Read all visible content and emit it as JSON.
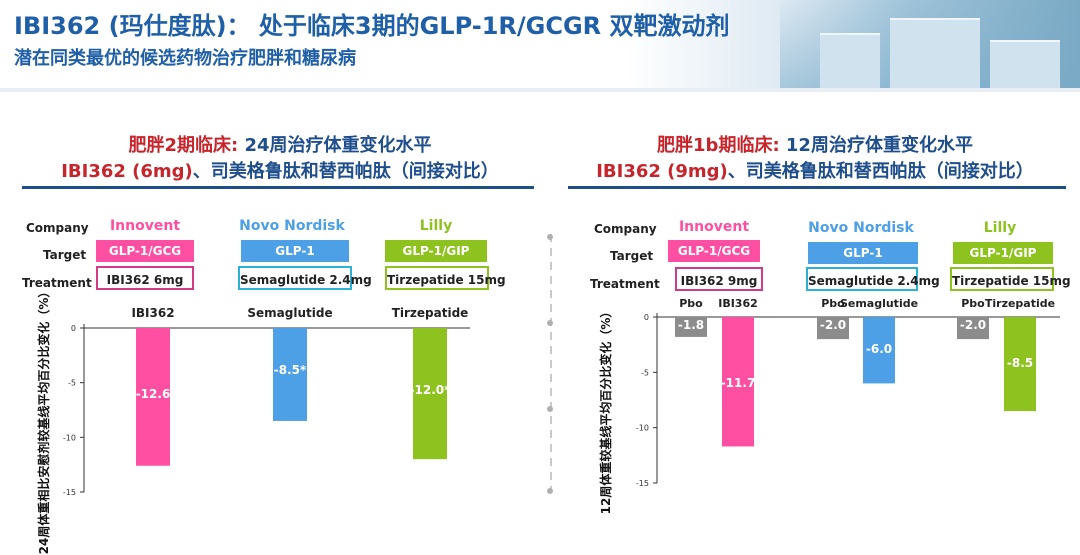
{
  "header": {
    "title": "IBI362 (玛仕度肽)： 处于临床3期的GLP-1R/GCGR 双靶激动剂",
    "subtitle": "潜在同类最优的候选药物治疗肥胖和糖尿病"
  },
  "left_panel": {
    "title_red": "肥胖2期临床:",
    "title_blue": " 24周治疗体重变化水平",
    "title_line2_red": "IBI362 (6mg)",
    "title_line2_blue": "、司美格鲁肽和替西帕肽（间接对比）",
    "row_labels": {
      "company": "Company",
      "target": "Target",
      "treatment": "Treatment"
    },
    "columns": [
      {
        "company": "Innovent",
        "company_color": "#ff4fa3",
        "target": "GLP-1/GCG",
        "target_color": "#ff4fa3",
        "treatment": "IBI362 6mg",
        "border_color": "#d23a87"
      },
      {
        "company": "Novo Nordisk",
        "company_color": "#4d9fe6",
        "target": "GLP-1",
        "target_color": "#4d9fe6",
        "treatment": "Semaglutide 2.4mg",
        "border_color": "#2bb0d6"
      },
      {
        "company": "Lilly",
        "company_color": "#8dc21f",
        "target": "GLP-1/GIP",
        "target_color": "#8dc21f",
        "treatment": "Tirzepatide 15mg",
        "border_color": "#8dc21f"
      }
    ],
    "y_axis_label": "24周体重相比安慰剂较基线平均百分比变化（%）"
  },
  "right_panel": {
    "title_red": "肥胖1b期临床:",
    "title_blue": " 12周治疗体重变化水平",
    "title_line2_red": "IBI362 (9mg)",
    "title_line2_blue": "、司美格鲁肽和替西帕肽（间接对比）",
    "row_labels": {
      "company": "Company",
      "target": "Target",
      "treatment": "Treatment"
    },
    "columns": [
      {
        "company": "Innovent",
        "company_color": "#ff4fa3",
        "target": "GLP-1/GCG",
        "target_color": "#ff4fa3",
        "treatment": "IBI362 9mg",
        "border_color": "#d23a87"
      },
      {
        "company": "Novo Nordisk",
        "company_color": "#4d9fe6",
        "target": "GLP-1",
        "target_color": "#4d9fe6",
        "treatment": "Semaglutide 2.4mg",
        "border_color": "#2bb0d6"
      },
      {
        "company": "Lilly",
        "company_color": "#8dc21f",
        "target": "GLP-1/GIP",
        "target_color": "#8dc21f",
        "treatment": "Tirzepatide 15mg",
        "border_color": "#8dc21f"
      }
    ],
    "y_axis_label": "12周体重较基线平均百分比变化（%）"
  },
  "chart_data": [
    {
      "type": "bar",
      "categories": [
        "IBI362",
        "Semaglutide",
        "Tirzepatide"
      ],
      "values": [
        -12.6,
        -8.5,
        -12.0
      ],
      "data_labels": [
        "-12.6",
        "-8.5*",
        "-12.0*"
      ],
      "colors": [
        "#ff4fa3",
        "#4d9fe6",
        "#8dc21f"
      ],
      "ylabel": "24周体重相比安慰剂较基线平均百分比变化（%）",
      "ylim": [
        -15,
        0
      ],
      "yticks": [
        0,
        -5,
        -10,
        -15
      ]
    },
    {
      "type": "bar",
      "categories": [
        "Pbo",
        "IBI362",
        "Pbo",
        "Semaglutide",
        "Pbo",
        "Tirzepatide"
      ],
      "values": [
        -1.8,
        -11.7,
        -2.0,
        -6.0,
        -2.0,
        -8.5
      ],
      "data_labels": [
        "-1.8",
        "-11.7",
        "-2.0",
        "-6.0",
        "-2.0",
        "-8.5"
      ],
      "colors": [
        "#8c8c8c",
        "#ff4fa3",
        "#8c8c8c",
        "#4d9fe6",
        "#8c8c8c",
        "#8dc21f"
      ],
      "ylabel": "12周体重较基线平均百分比变化（%）",
      "ylim": [
        -15,
        0
      ],
      "yticks": [
        0,
        -5,
        -10,
        -15
      ]
    }
  ]
}
